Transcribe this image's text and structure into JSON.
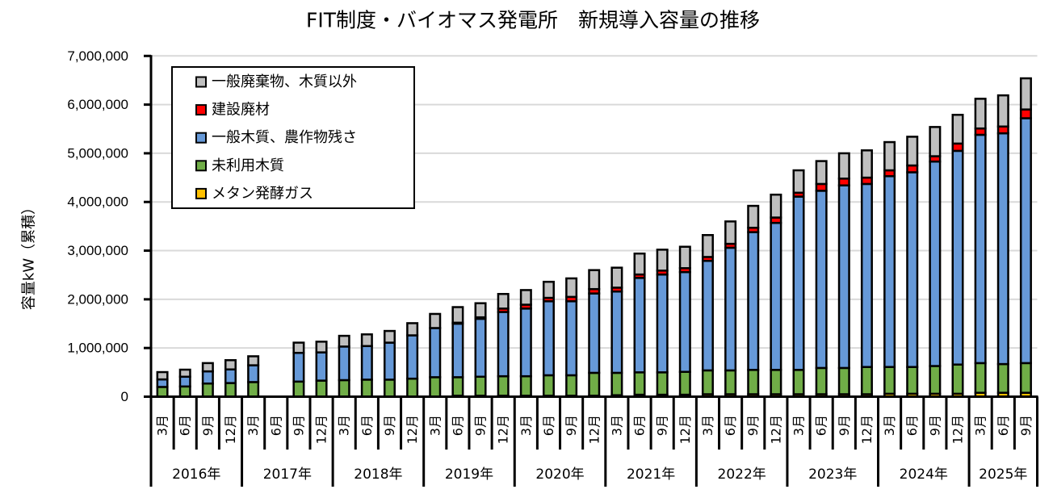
{
  "chart_data": {
    "type": "bar",
    "stacked": true,
    "title": "FIT制度・バイオマス発電所　新規導入容量の推移",
    "xlabel": "",
    "ylabel": "容量kW（累積）",
    "ylim": [
      0,
      7000000
    ],
    "yticks": [
      0,
      1000000,
      2000000,
      3000000,
      4000000,
      5000000,
      6000000,
      7000000
    ],
    "ytick_labels": [
      "0",
      "1,000,000",
      "2,000,000",
      "3,000,000",
      "4,000,000",
      "5,000,000",
      "6,000,000",
      "7,000,000"
    ],
    "grid": true,
    "legend_position": "top-left",
    "categories": [
      "2016年3月",
      "2016年6月",
      "2016年9月",
      "2016年12月",
      "2017年3月",
      "2017年6月",
      "2017年9月",
      "2017年12月",
      "2018年3月",
      "2018年6月",
      "2018年9月",
      "2018年12月",
      "2019年3月",
      "2019年6月",
      "2019年9月",
      "2019年12月",
      "2020年3月",
      "2020年6月",
      "2020年9月",
      "2020年12月",
      "2021年3月",
      "2021年6月",
      "2021年9月",
      "2021年12月",
      "2022年3月",
      "2022年6月",
      "2022年9月",
      "2022年12月",
      "2023年3月",
      "2023年6月",
      "2023年9月",
      "2023年12月",
      "2024年3月",
      "2024年6月",
      "2024年9月",
      "2024年12月",
      "2025年3月",
      "2025年6月",
      "2025年9月"
    ],
    "category_groups": [
      {
        "label": "2016年",
        "months": [
          "3月",
          "6月",
          "9月",
          "12月"
        ]
      },
      {
        "label": "2017年",
        "months": [
          "3月",
          "6月",
          "9月",
          "12月"
        ]
      },
      {
        "label": "2018年",
        "months": [
          "3月",
          "6月",
          "9月",
          "12月"
        ]
      },
      {
        "label": "2019年",
        "months": [
          "3月",
          "6月",
          "9月",
          "12月"
        ]
      },
      {
        "label": "2020年",
        "months": [
          "3月",
          "6月",
          "9月",
          "12月"
        ]
      },
      {
        "label": "2021年",
        "months": [
          "3月",
          "6月",
          "9月",
          "12月"
        ]
      },
      {
        "label": "2022年",
        "months": [
          "3月",
          "6月",
          "9月",
          "12月"
        ]
      },
      {
        "label": "2023年",
        "months": [
          "3月",
          "6月",
          "9月",
          "12月"
        ]
      },
      {
        "label": "2024年",
        "months": [
          "3月",
          "6月",
          "9月",
          "12月"
        ]
      },
      {
        "label": "2025年",
        "months": [
          "3月",
          "6月",
          "9月"
        ]
      }
    ],
    "series": [
      {
        "key": "methane",
        "name": "メタン発酵ガス",
        "color": "#FFC000",
        "values": [
          0,
          0,
          0,
          0,
          0,
          null,
          0,
          0,
          0,
          0,
          0,
          0,
          0,
          20000,
          20000,
          20000,
          20000,
          20000,
          20000,
          20000,
          30000,
          40000,
          40000,
          40000,
          50000,
          50000,
          50000,
          50000,
          50000,
          50000,
          50000,
          50000,
          60000,
          60000,
          60000,
          60000,
          80000,
          80000,
          80000
        ]
      },
      {
        "key": "unused-wood",
        "name": "未利用木質",
        "color": "#70AD47",
        "values": [
          200000,
          210000,
          270000,
          280000,
          300000,
          null,
          310000,
          330000,
          340000,
          350000,
          350000,
          370000,
          400000,
          380000,
          390000,
          400000,
          400000,
          420000,
          420000,
          470000,
          460000,
          460000,
          460000,
          470000,
          490000,
          490000,
          500000,
          500000,
          500000,
          540000,
          540000,
          560000,
          550000,
          550000,
          570000,
          600000,
          610000,
          590000,
          610000
        ]
      },
      {
        "key": "general-wood",
        "name": "一般木質、農作物残さ",
        "color": "#6699D8",
        "values": [
          155000,
          200000,
          250000,
          280000,
          345000,
          null,
          590000,
          580000,
          690000,
          690000,
          760000,
          890000,
          1010000,
          1100000,
          1190000,
          1320000,
          1390000,
          1520000,
          1520000,
          1630000,
          1670000,
          1940000,
          2010000,
          2050000,
          2250000,
          2520000,
          2830000,
          3020000,
          3560000,
          3640000,
          3750000,
          3760000,
          3920000,
          4000000,
          4200000,
          4390000,
          4690000,
          4740000,
          5030000
        ]
      },
      {
        "key": "construction-waste",
        "name": "建設廃材",
        "color": "#FF0000",
        "values": [
          0,
          0,
          0,
          0,
          0,
          null,
          0,
          0,
          0,
          0,
          0,
          0,
          0,
          20000,
          30000,
          70000,
          80000,
          70000,
          90000,
          90000,
          80000,
          70000,
          80000,
          80000,
          80000,
          80000,
          90000,
          110000,
          80000,
          140000,
          140000,
          130000,
          120000,
          140000,
          110000,
          150000,
          130000,
          140000,
          180000
        ]
      },
      {
        "key": "general-waste",
        "name": "一般廃棄物、木質以外",
        "color": "#BFBFBF",
        "values": [
          150000,
          145000,
          170000,
          190000,
          185000,
          null,
          210000,
          220000,
          220000,
          240000,
          240000,
          250000,
          290000,
          320000,
          290000,
          300000,
          300000,
          330000,
          380000,
          390000,
          410000,
          430000,
          430000,
          440000,
          450000,
          460000,
          450000,
          470000,
          460000,
          470000,
          520000,
          560000,
          580000,
          590000,
          600000,
          590000,
          610000,
          640000,
          640000
        ]
      }
    ]
  }
}
